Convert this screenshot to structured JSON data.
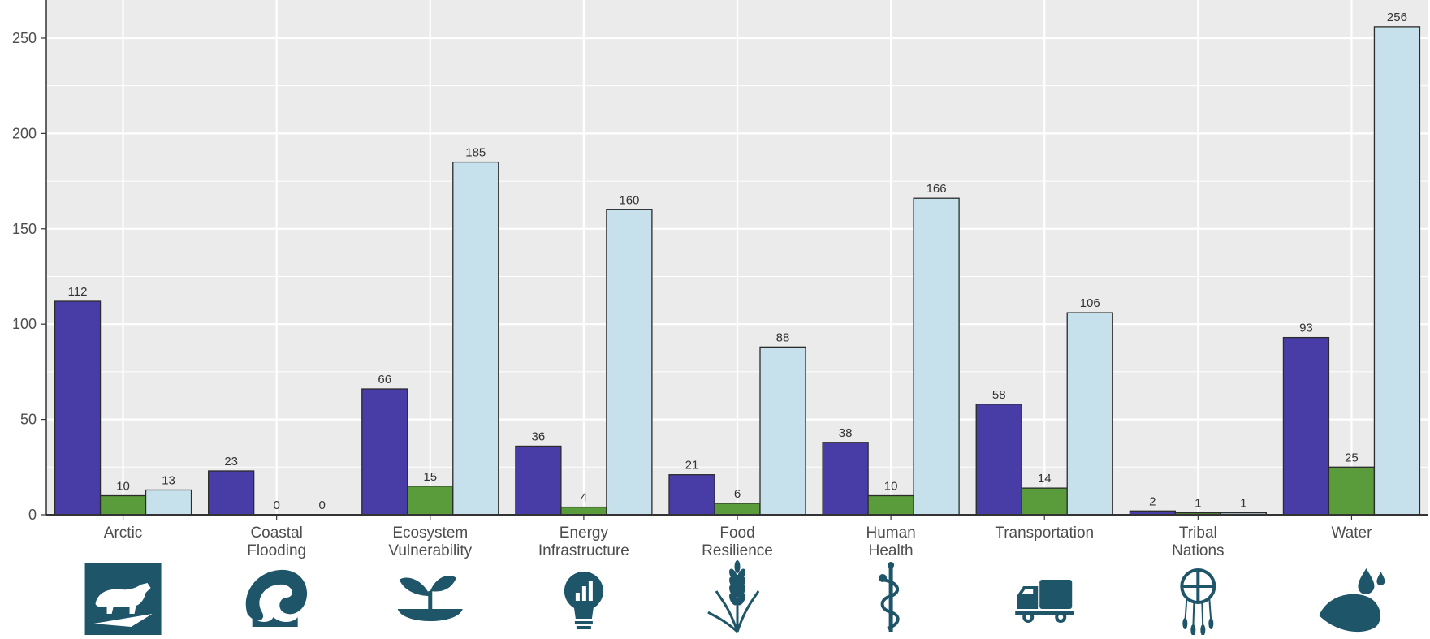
{
  "chart_data": {
    "type": "bar",
    "title": "",
    "xlabel": "",
    "ylabel": "",
    "ylim": [
      0,
      270
    ],
    "yticks": [
      0,
      50,
      100,
      150,
      200,
      250
    ],
    "grid": true,
    "legend": "none",
    "categories": [
      [
        "Arctic"
      ],
      [
        "Coastal",
        "Flooding"
      ],
      [
        "Ecosystem",
        "Vulnerability"
      ],
      [
        "Energy",
        "Infrastructure"
      ],
      [
        "Food",
        "Resilience"
      ],
      [
        "Human",
        "Health"
      ],
      [
        "Transportation"
      ],
      [
        "Tribal",
        "Nations"
      ],
      [
        "Water"
      ]
    ],
    "category_icons": [
      "polar-bear-icon",
      "wave-icon",
      "sprout-icon",
      "lightbulb-chart-icon",
      "wheat-icon",
      "caduceus-icon",
      "truck-icon",
      "dreamcatcher-icon",
      "water-drop-icon"
    ],
    "series": [
      {
        "color": "#483da6",
        "values": [
          112,
          23,
          66,
          36,
          21,
          38,
          58,
          2,
          93
        ]
      },
      {
        "color": "#5a9c3b",
        "values": [
          10,
          0,
          15,
          4,
          6,
          10,
          14,
          1,
          25
        ]
      },
      {
        "color": "#c6e1ec",
        "values": [
          13,
          0,
          185,
          160,
          88,
          166,
          106,
          1,
          256
        ]
      }
    ],
    "colors": {
      "panel": "#ebebeb",
      "grid": "#ffffff",
      "axis": "#333333",
      "icon": "#1e5568"
    }
  }
}
